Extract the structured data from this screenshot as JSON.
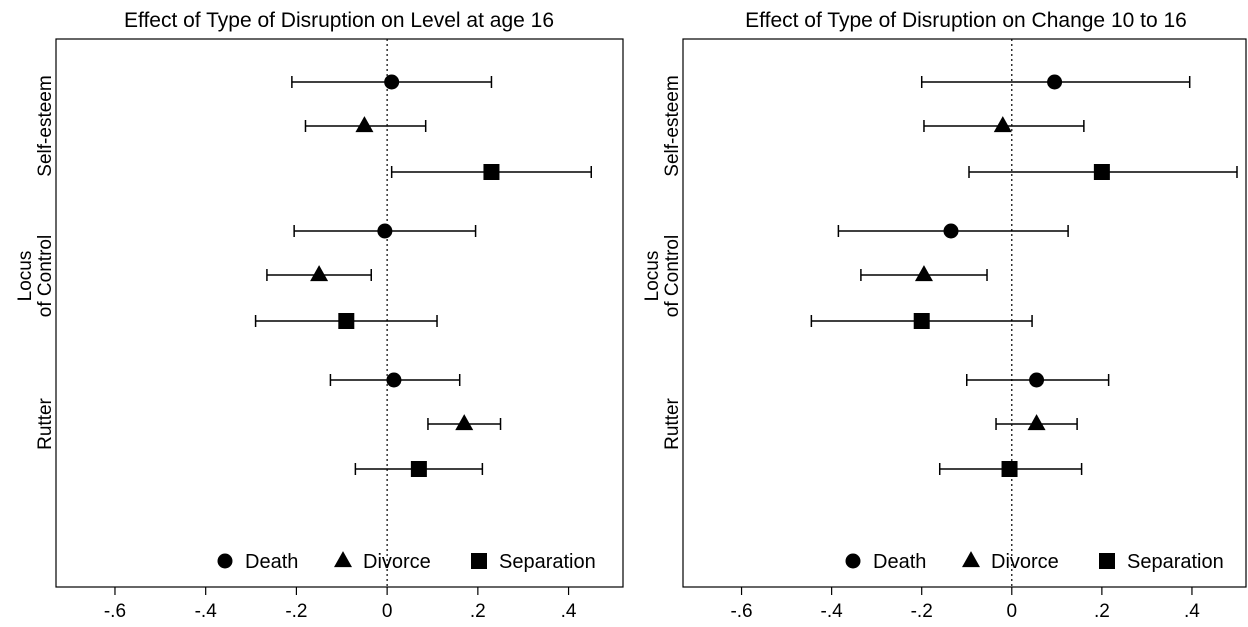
{
  "chart_data": [
    {
      "type": "scatter",
      "title": "Effect of Type of Disruption on Level at age 16",
      "xlim": [
        -0.73,
        0.52
      ],
      "xticks": [
        {
          "value": -0.6,
          "label": "-.6"
        },
        {
          "value": -0.4,
          "label": "-.4"
        },
        {
          "value": -0.2,
          "label": "-.2"
        },
        {
          "value": 0,
          "label": "0"
        },
        {
          "value": 0.2,
          "label": ".2"
        },
        {
          "value": 0.4,
          "label": ".4"
        }
      ],
      "reference_line": 0,
      "groups": [
        {
          "label": "Self-esteem",
          "label_lines": [
            "Self-esteem"
          ]
        },
        {
          "label": "Locus of Control",
          "label_lines": [
            "Locus",
            "of Control"
          ]
        },
        {
          "label": "Rutter",
          "label_lines": [
            "Rutter"
          ]
        }
      ],
      "series": [
        {
          "name": "Death",
          "marker": "circle",
          "points": [
            {
              "group": "Self-esteem",
              "estimate": 0.01,
              "ci": [
                -0.21,
                0.23
              ]
            },
            {
              "group": "Locus of Control",
              "estimate": -0.005,
              "ci": [
                -0.205,
                0.195
              ]
            },
            {
              "group": "Rutter",
              "estimate": 0.015,
              "ci": [
                -0.125,
                0.16
              ]
            }
          ]
        },
        {
          "name": "Divorce",
          "marker": "triangle",
          "points": [
            {
              "group": "Self-esteem",
              "estimate": -0.05,
              "ci": [
                -0.18,
                0.085
              ]
            },
            {
              "group": "Locus of Control",
              "estimate": -0.15,
              "ci": [
                -0.265,
                -0.035
              ]
            },
            {
              "group": "Rutter",
              "estimate": 0.17,
              "ci": [
                0.09,
                0.25
              ]
            }
          ]
        },
        {
          "name": "Separation",
          "marker": "square",
          "points": [
            {
              "group": "Self-esteem",
              "estimate": 0.23,
              "ci": [
                0.01,
                0.45
              ]
            },
            {
              "group": "Locus of Control",
              "estimate": -0.09,
              "ci": [
                -0.29,
                0.11
              ]
            },
            {
              "group": "Rutter",
              "estimate": 0.07,
              "ci": [
                -0.07,
                0.21
              ]
            }
          ]
        }
      ],
      "legend": {
        "placement": "bottom-right",
        "entries": [
          "Death",
          "Divorce",
          "Separation"
        ]
      },
      "grid": false
    },
    {
      "type": "scatter",
      "title": "Effect of Type of Disruption on Change 10 to 16",
      "xlim": [
        -0.73,
        0.52
      ],
      "xticks": [
        {
          "value": -0.6,
          "label": "-.6"
        },
        {
          "value": -0.4,
          "label": "-.4"
        },
        {
          "value": -0.2,
          "label": "-.2"
        },
        {
          "value": 0,
          "label": "0"
        },
        {
          "value": 0.2,
          "label": ".2"
        },
        {
          "value": 0.4,
          "label": ".4"
        }
      ],
      "reference_line": 0,
      "groups": [
        {
          "label": "Self-esteem",
          "label_lines": [
            "Self-esteem"
          ]
        },
        {
          "label": "Locus of Control",
          "label_lines": [
            "Locus",
            "of Control"
          ]
        },
        {
          "label": "Rutter",
          "label_lines": [
            "Rutter"
          ]
        }
      ],
      "series": [
        {
          "name": "Death",
          "marker": "circle",
          "points": [
            {
              "group": "Self-esteem",
              "estimate": 0.095,
              "ci": [
                -0.2,
                0.395
              ]
            },
            {
              "group": "Locus of Control",
              "estimate": -0.135,
              "ci": [
                -0.385,
                0.125
              ]
            },
            {
              "group": "Rutter",
              "estimate": 0.055,
              "ci": [
                -0.1,
                0.215
              ]
            }
          ]
        },
        {
          "name": "Divorce",
          "marker": "triangle",
          "points": [
            {
              "group": "Self-esteem",
              "estimate": -0.02,
              "ci": [
                -0.195,
                0.16
              ]
            },
            {
              "group": "Locus of Control",
              "estimate": -0.195,
              "ci": [
                -0.335,
                -0.055
              ]
            },
            {
              "group": "Rutter",
              "estimate": 0.055,
              "ci": [
                -0.035,
                0.145
              ]
            }
          ]
        },
        {
          "name": "Separation",
          "marker": "square",
          "points": [
            {
              "group": "Self-esteem",
              "estimate": 0.2,
              "ci": [
                -0.095,
                0.5
              ]
            },
            {
              "group": "Locus of Control",
              "estimate": -0.2,
              "ci": [
                -0.445,
                0.045
              ]
            },
            {
              "group": "Rutter",
              "estimate": -0.005,
              "ci": [
                -0.16,
                0.155
              ]
            }
          ]
        }
      ],
      "legend": {
        "placement": "bottom-right",
        "entries": [
          "Death",
          "Divorce",
          "Separation"
        ]
      },
      "grid": false
    }
  ],
  "colors": {
    "marks": "#000000",
    "background": "#ffffff",
    "axis": "#000000"
  }
}
